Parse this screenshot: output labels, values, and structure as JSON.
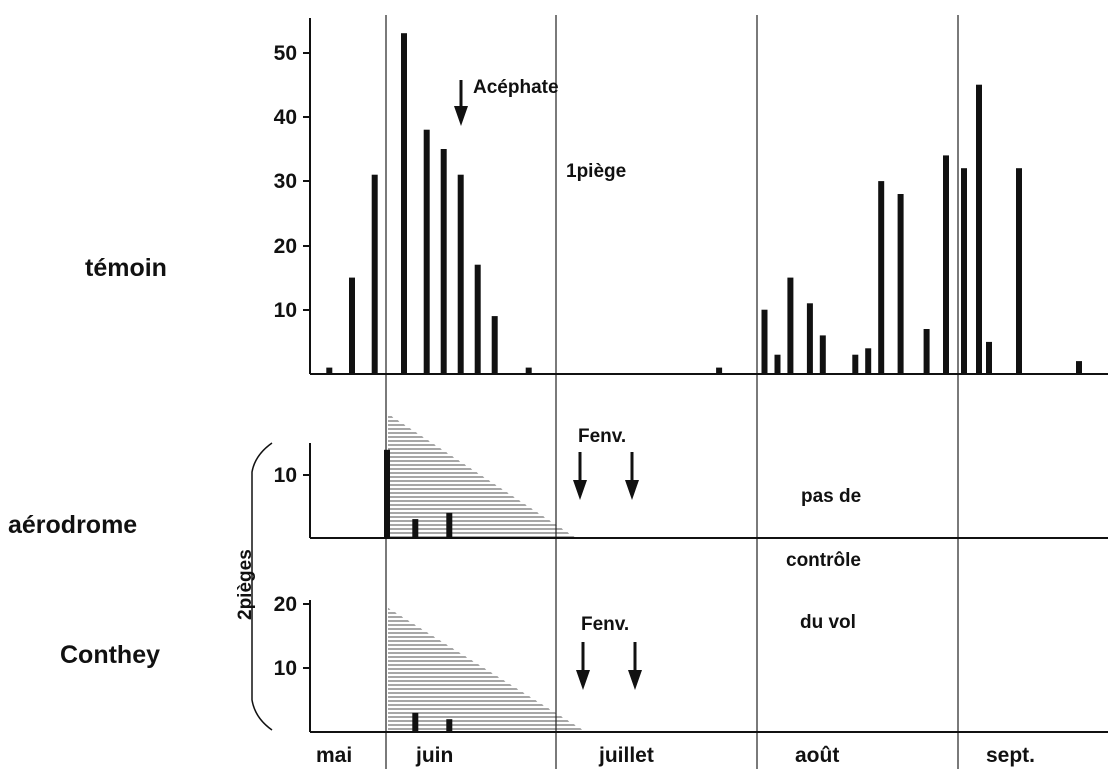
{
  "chart_data": [
    {
      "type": "bar",
      "panel": "témoin",
      "row_label": "témoin",
      "y_ticks": [
        "10",
        "20",
        "30",
        "40",
        "50"
      ],
      "ylim": [
        0,
        55
      ],
      "note": "1piège",
      "annotation": "Acéphate",
      "x_months": [
        "mai",
        "juin",
        "juillet",
        "août",
        "sept."
      ],
      "series": [
        {
          "values": [
            {
              "month": "mai",
              "day": 22,
              "y": 1
            },
            {
              "month": "mai",
              "day": 26,
              "y": 15
            },
            {
              "month": "mai",
              "day": 30,
              "y": 31
            },
            {
              "month": "juin",
              "day": 4,
              "y": 53
            },
            {
              "month": "juin",
              "day": 8,
              "y": 38
            },
            {
              "month": "juin",
              "day": 11,
              "y": 35
            },
            {
              "month": "juin",
              "day": 14,
              "y": 31
            },
            {
              "month": "juin",
              "day": 17,
              "y": 17
            },
            {
              "month": "juin",
              "day": 20,
              "y": 9
            },
            {
              "month": "juin",
              "day": 26,
              "y": 1
            },
            {
              "month": "juillet",
              "day": 26,
              "y": 1
            },
            {
              "month": "août",
              "day": 2,
              "y": 10
            },
            {
              "month": "août",
              "day": 4,
              "y": 3
            },
            {
              "month": "août",
              "day": 6,
              "y": 15
            },
            {
              "month": "août",
              "day": 9,
              "y": 11
            },
            {
              "month": "août",
              "day": 11,
              "y": 6
            },
            {
              "month": "août",
              "day": 16,
              "y": 3
            },
            {
              "month": "août",
              "day": 18,
              "y": 4
            },
            {
              "month": "août",
              "day": 20,
              "y": 30
            },
            {
              "month": "août",
              "day": 23,
              "y": 28
            },
            {
              "month": "août",
              "day": 27,
              "y": 7
            },
            {
              "month": "août",
              "day": 30,
              "y": 34
            },
            {
              "month": "sept.",
              "day": 2,
              "y": 32
            },
            {
              "month": "sept.",
              "day": 5,
              "y": 45
            },
            {
              "month": "sept.",
              "day": 7,
              "y": 5
            },
            {
              "month": "sept.",
              "day": 13,
              "y": 32
            },
            {
              "month": "sept.",
              "day": 25,
              "y": 2
            }
          ]
        }
      ]
    },
    {
      "type": "bar",
      "panel": "aérodrome",
      "row_label": "aérodrome",
      "y_ticks": [
        "10"
      ],
      "ylim": [
        0,
        14
      ],
      "annotation": "Fenv.",
      "series": [
        {
          "values": [
            {
              "month": "juin",
              "day": 1,
              "y": 14
            },
            {
              "month": "juin",
              "day": 6,
              "y": 3
            },
            {
              "month": "juin",
              "day": 12,
              "y": 4
            }
          ]
        }
      ]
    },
    {
      "type": "bar",
      "panel": "Conthey",
      "row_label": "Conthey",
      "y_ticks": [
        "10",
        "20"
      ],
      "ylim": [
        0,
        20
      ],
      "annotation": "Fenv.",
      "series": [
        {
          "values": [
            {
              "month": "juin",
              "day": 6,
              "y": 3
            },
            {
              "month": "juin",
              "day": 12,
              "y": 2
            }
          ]
        }
      ]
    }
  ],
  "labels": {
    "temoin": "témoin",
    "aerodrome": "aérodrome",
    "conthey": "Conthey",
    "pieges": "2pièges",
    "one_piege": "1piège",
    "acephate": "Acéphate",
    "fenv_top": "Fenv.",
    "fenv_bottom": "Fenv.",
    "no_control_1": "pas de",
    "no_control_2": "contrôle",
    "no_control_3": "du vol"
  },
  "ticks": {
    "t10": "10",
    "t20": "20",
    "t30": "30",
    "t40": "40",
    "t50": "50",
    "a10": "10",
    "c10": "10",
    "c20": "20"
  },
  "months": {
    "mai": "mai",
    "juin": "juin",
    "juillet": "juillet",
    "aout": "août",
    "sept": "sept."
  }
}
